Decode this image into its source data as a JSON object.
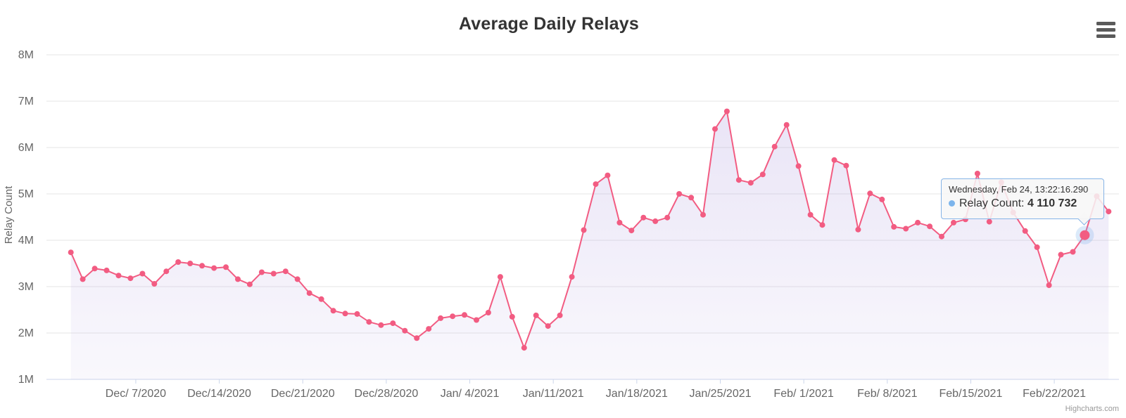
{
  "header": {
    "title": "Average Daily Relays"
  },
  "credits": {
    "label": "Highcharts.com"
  },
  "menu": {
    "icon": "hamburger-icon"
  },
  "chart_data": {
    "type": "area",
    "title": "Average Daily Relays",
    "xlabel": "",
    "ylabel": "Relay Count",
    "ylim_millions": [
      1,
      8
    ],
    "grid": true,
    "legend": false,
    "start_date": "2020-12-01",
    "end_date": "2021-02-26",
    "sample_time_of_day": "13:22",
    "y_tick_labels": [
      "1M",
      "2M",
      "3M",
      "4M",
      "5M",
      "6M",
      "7M",
      "8M"
    ],
    "x_tick_labels": [
      "Dec/ 7/2020",
      "Dec/14/2020",
      "Dec/21/2020",
      "Dec/28/2020",
      "Jan/ 4/2021",
      "Jan/11/2021",
      "Jan/18/2021",
      "Jan/25/2021",
      "Feb/ 1/2021",
      "Feb/ 8/2021",
      "Feb/15/2021",
      "Feb/22/2021"
    ],
    "x_tick_day_offsets": [
      6,
      13,
      20,
      27,
      34,
      41,
      48,
      55,
      62,
      69,
      76,
      83
    ],
    "series": [
      {
        "name": "Relay Count",
        "values_millions": [
          3.74,
          3.16,
          3.39,
          3.35,
          3.24,
          3.18,
          3.28,
          3.06,
          3.33,
          3.53,
          3.5,
          3.45,
          3.4,
          3.42,
          3.16,
          3.05,
          3.31,
          3.28,
          3.33,
          3.16,
          2.86,
          2.73,
          2.48,
          2.42,
          2.41,
          2.24,
          2.17,
          2.21,
          2.05,
          1.89,
          2.09,
          2.32,
          2.36,
          2.39,
          2.28,
          2.44,
          3.21,
          2.35,
          1.68,
          2.38,
          2.15,
          2.38,
          3.21,
          4.22,
          5.21,
          5.4,
          4.38,
          4.21,
          4.49,
          4.41,
          4.49,
          5.0,
          4.92,
          4.55,
          6.4,
          6.78,
          5.3,
          5.24,
          5.42,
          6.02,
          6.49,
          5.6,
          4.55,
          4.33,
          5.73,
          5.61,
          4.23,
          5.01,
          4.88,
          4.29,
          4.25,
          4.38,
          4.3,
          4.08,
          4.38,
          4.45,
          5.44,
          4.4,
          5.25,
          4.6,
          4.2,
          3.85,
          3.03,
          3.69,
          3.75,
          4.110732,
          4.95,
          4.62
        ]
      }
    ],
    "hover": {
      "point_index": 85,
      "header": "Wednesday, Feb 24, 13:22:16.290",
      "series_label": "Relay Count",
      "value_display": "4 110 732"
    },
    "colors": {
      "line": "#f25c82",
      "marker": "#f25c82",
      "fill_top": "rgba(158,136,216,0.22)",
      "fill_bottom": "rgba(158,136,216,0.06)",
      "grid": "#e6e6e6",
      "axis_line": "#ccd6eb",
      "axis_label": "#666666",
      "title": "#333333",
      "tooltip_border": "#86b4e7",
      "tooltip_bullet": "#7cb5ec",
      "halo": "rgba(124,181,236,0.28)",
      "credits": "#999999"
    }
  }
}
